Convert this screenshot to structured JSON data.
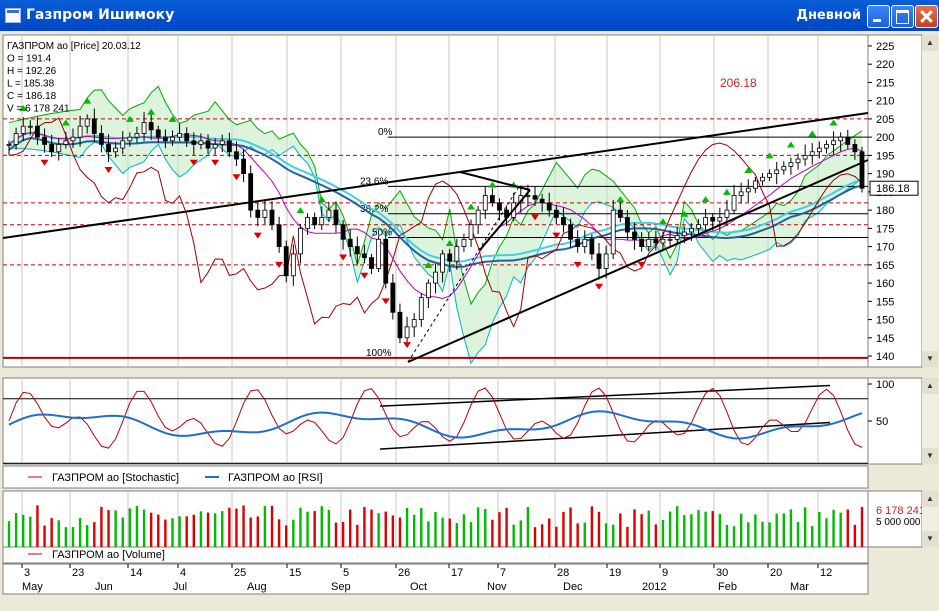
{
  "window": {
    "title": "Газпром Ишимоку",
    "mode": "Дневной"
  },
  "colors": {
    "bull": "#00bb00",
    "bear": "#dd0000",
    "price": "#000000",
    "cloud_green": "#00aa00",
    "cloud_cyan": "#00b4c8",
    "kijun": "#1e64a0",
    "tenkan": "#c000c0",
    "chikou": "#a00000",
    "ma_cyan": "#40d0e0",
    "resistance": "#cc0000",
    "fib": "#000000",
    "stoch": "#c00000",
    "rsi": "#1e6fd0",
    "volume_up": "#00bb00",
    "volume_down": "#dd0000"
  },
  "price_panel": {
    "legend": [
      "ГАЗПРОМ ао [Price] 20.03.12",
      "O = 191.4",
      "H = 192.26",
      "L = 185.38",
      "C = 186.18",
      "V = 6 178 241"
    ],
    "last_label": "186.18",
    "annotation": "206.18",
    "y_ticks": [
      "225",
      "220",
      "215",
      "210",
      "205",
      "200",
      "195",
      "190",
      "185",
      "180",
      "175",
      "170",
      "165",
      "160",
      "155",
      "150",
      "145",
      "140"
    ],
    "fib_labels": [
      "0%",
      "23.6%",
      "38.2%",
      "50%",
      "100%"
    ]
  },
  "osc_panel": {
    "legend": [
      {
        "label": "ГАЗПРОМ ао [Stochastic]"
      },
      {
        "label": "ГАЗПРОМ ао [RSI]"
      }
    ],
    "y_ticks": [
      "100",
      "50"
    ]
  },
  "vol_panel": {
    "legend": [
      {
        "label": "ГАЗПРОМ ао [Volume]"
      }
    ],
    "last_label": "6 178 241",
    "last_label2": "5 000 000"
  },
  "x_axis": {
    "days": [
      "3",
      "23",
      "14",
      "4",
      "25",
      "15",
      "5",
      "26",
      "17",
      "7",
      "28",
      "19",
      "9",
      "30",
      "20",
      "12"
    ],
    "months": [
      "May",
      "Jun",
      "Jul",
      "Aug",
      "Sep",
      "Oct",
      "Nov",
      "Dec",
      "2012",
      "Feb",
      "Mar"
    ]
  },
  "chart_data": {
    "type": "line",
    "title": "Газпром Ишимоку",
    "ylim": [
      137,
      228
    ],
    "series": [
      {
        "name": "ГАЗПРОМ ао [Price]",
        "values": [
          198,
          201,
          203,
          203,
          200,
          198,
          196,
          198,
          199,
          200,
          203,
          205,
          201,
          198,
          196,
          197,
          199,
          200,
          201,
          204,
          202,
          200,
          199,
          200,
          201,
          199,
          198,
          199,
          197,
          198,
          199,
          196,
          194,
          190,
          180,
          178,
          180,
          176,
          170,
          162,
          168,
          175,
          178,
          176,
          178,
          180,
          176,
          172,
          170,
          168,
          167,
          164,
          172,
          160,
          152,
          145,
          148,
          150,
          156,
          160,
          163,
          168,
          166,
          170,
          172,
          176,
          180,
          184,
          182,
          180,
          178,
          182,
          184,
          184,
          183,
          182,
          180,
          178,
          176,
          172,
          170,
          172,
          168,
          164,
          168,
          180,
          178,
          174,
          172,
          170,
          172,
          171,
          172,
          172,
          173,
          174,
          175,
          176,
          178,
          177,
          178,
          180,
          184,
          185,
          186,
          188,
          189,
          190,
          191,
          192,
          193,
          194,
          195,
          196,
          197,
          198,
          199,
          200,
          198,
          196,
          186
        ]
      }
    ]
  }
}
